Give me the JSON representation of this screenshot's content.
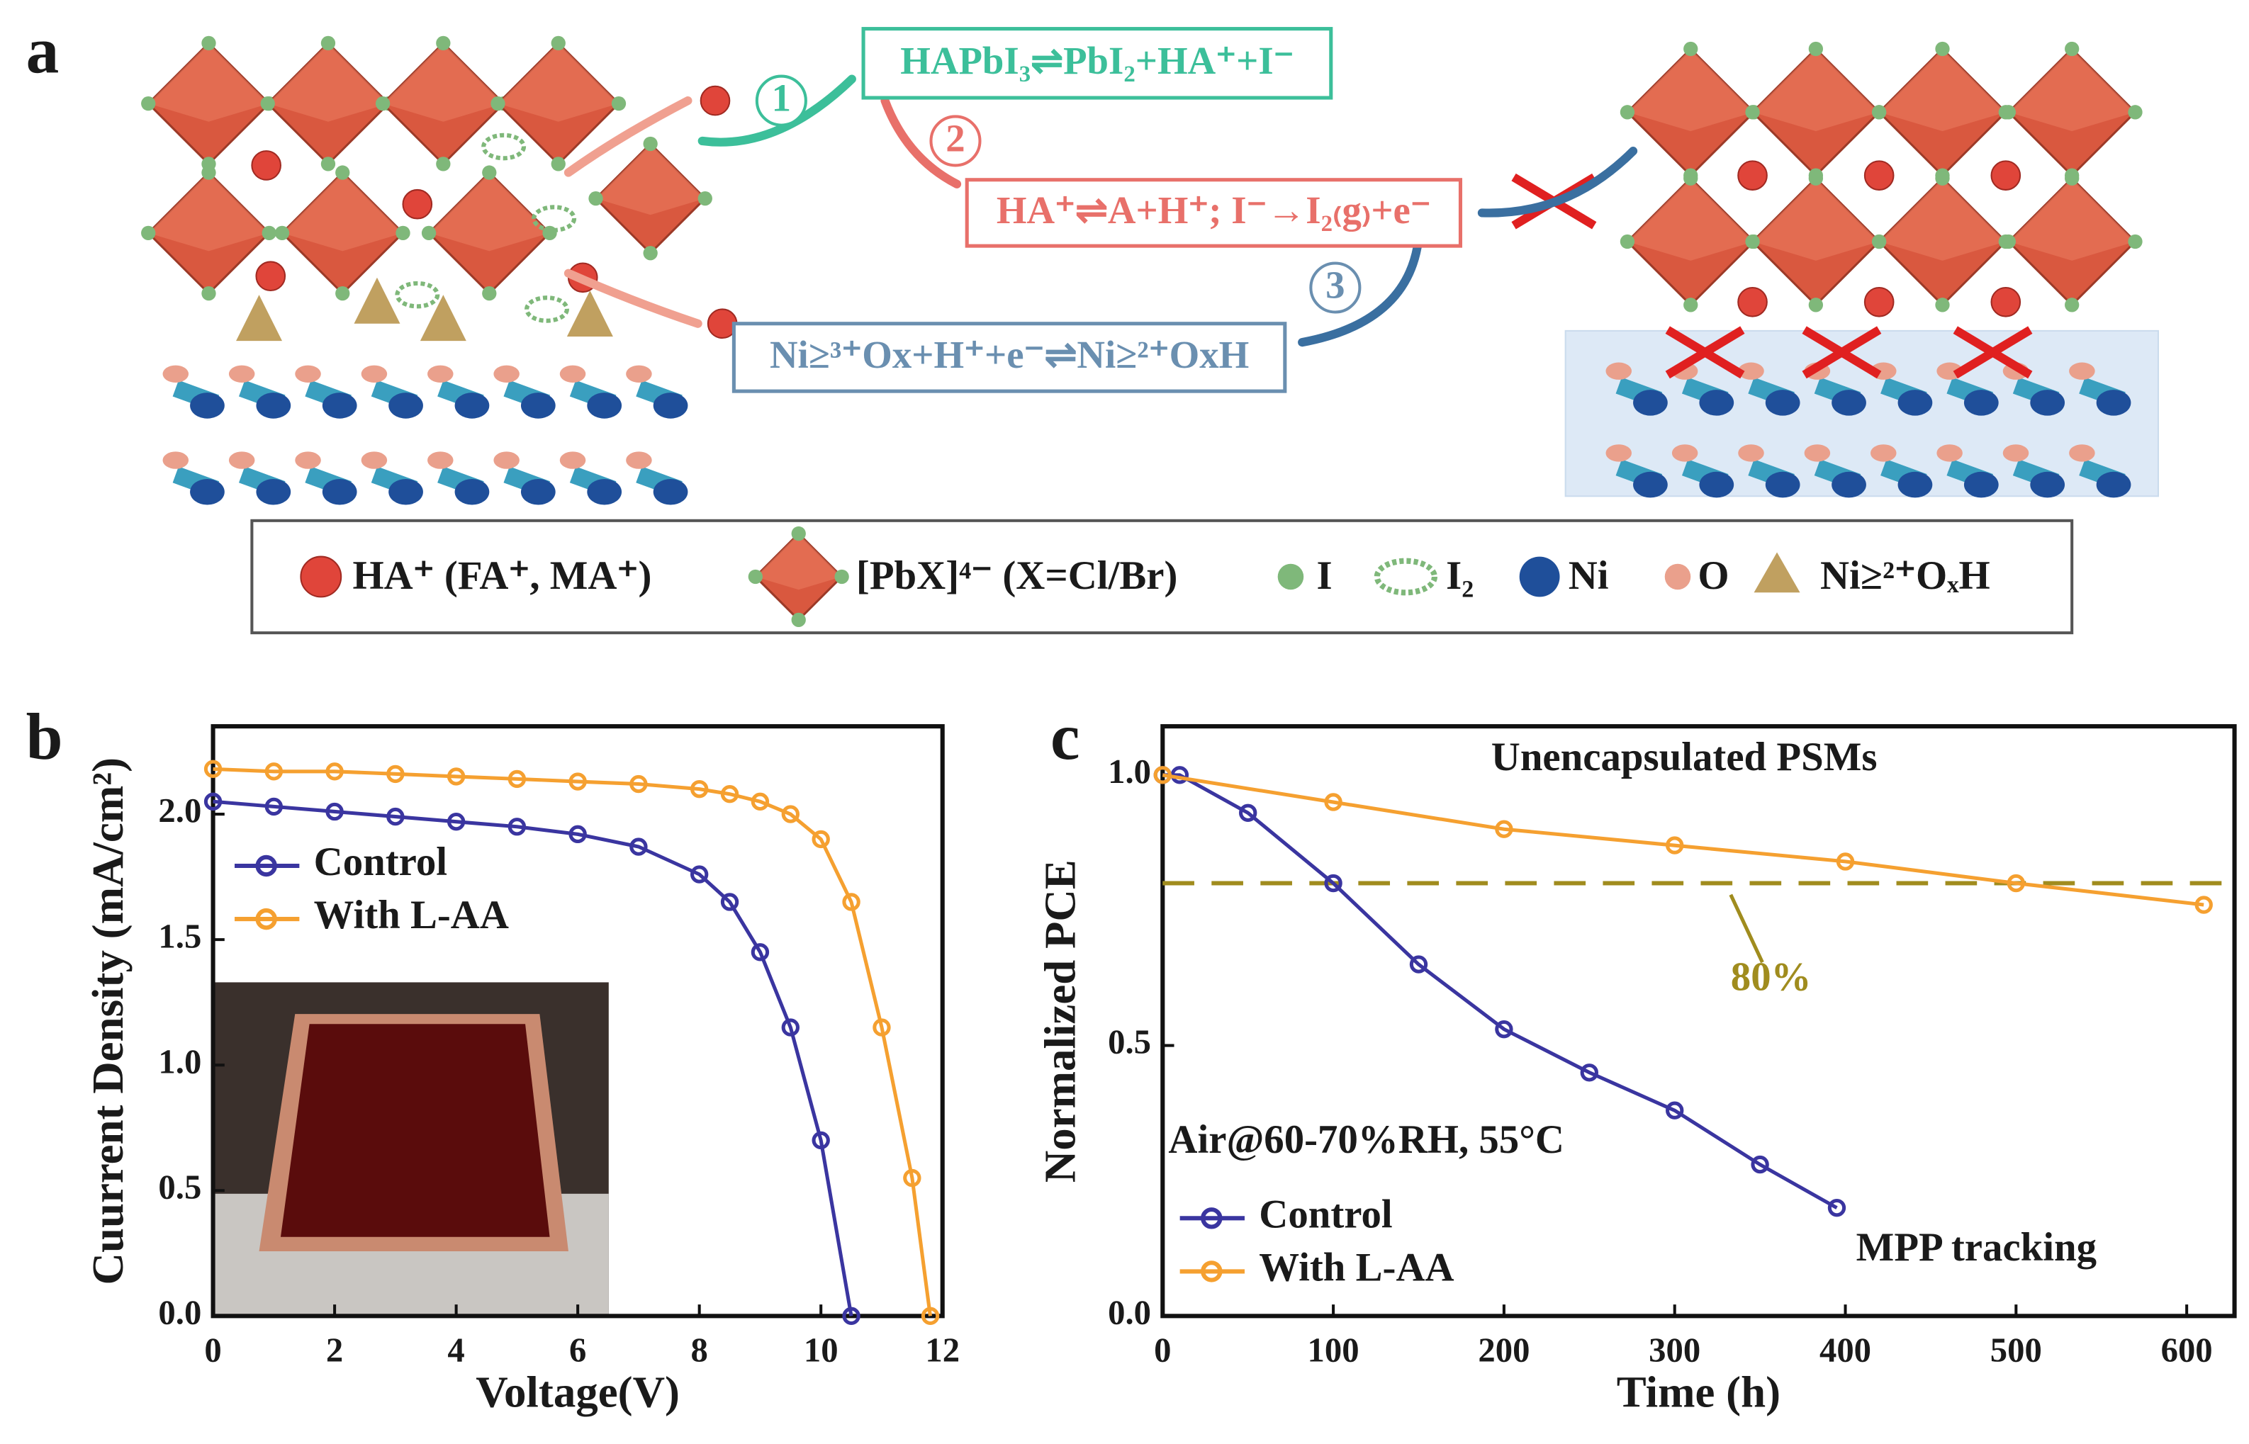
{
  "diagram": {
    "panel_label": "a",
    "equations": [
      {
        "step": "1",
        "text": "HAPbI₃⇌PbI₂+HA⁺+I⁻",
        "color": "#3cbf9a"
      },
      {
        "step": "2",
        "text": "HA⁺⇌A+H⁺; I⁻→I₂₍g₎+e⁻",
        "color": "#e8706a"
      },
      {
        "step": "3",
        "text": "Ni≥³⁺Ox+H⁺+e⁻⇌Ni≥²⁺OxH",
        "color": "#6a8fb0"
      }
    ],
    "legend": [
      "HA⁺ (FA⁺, MA⁺)",
      "[PbX]⁴⁻ (X=Cl/Br)",
      "I",
      "I₂",
      "Ni",
      "O",
      "Ni≥²⁺OₓH"
    ]
  },
  "chart_data": [
    {
      "type": "line",
      "panel_label": "b",
      "xlabel": "Voltage(V)",
      "ylabel": "Cuurrent Density (mA/cm²)",
      "xlim": [
        0,
        12
      ],
      "xticks": [
        0,
        2,
        4,
        6,
        8,
        10,
        12
      ],
      "ylim": [
        0,
        2.35
      ],
      "yticks": [
        {
          "value": 0,
          "label": "0.0"
        },
        0.5,
        {
          "value": 1,
          "label": "1.0"
        },
        1.5,
        {
          "value": 2,
          "label": "2.0"
        }
      ],
      "legend": "center left",
      "series": [
        {
          "name": "Control",
          "color": "#3a35a0",
          "x": [
            0,
            1,
            2,
            3,
            4,
            5,
            6,
            7,
            8,
            8.5,
            9,
            9.5,
            10,
            10.5
          ],
          "values": [
            2.05,
            2.03,
            2.01,
            1.99,
            1.97,
            1.95,
            1.92,
            1.87,
            1.76,
            1.65,
            1.45,
            1.15,
            0.7,
            0
          ]
        },
        {
          "name": "With L-AA",
          "color": "#f5a030",
          "x": [
            0,
            1,
            2,
            3,
            4,
            5,
            6,
            7,
            8,
            8.5,
            9,
            9.5,
            10,
            10.5,
            11,
            11.5,
            11.8
          ],
          "values": [
            2.18,
            2.17,
            2.17,
            2.16,
            2.15,
            2.14,
            2.13,
            2.12,
            2.1,
            2.08,
            2.05,
            2.0,
            1.9,
            1.65,
            1.15,
            0.55,
            0
          ]
        }
      ]
    },
    {
      "type": "line",
      "panel_label": "c",
      "title": "Unencapsulated PSMs",
      "xlabel": "Time (h)",
      "ylabel": "Normalized PCE",
      "xlim": [
        0,
        628
      ],
      "xticks": [
        0,
        100,
        200,
        300,
        400,
        500,
        600
      ],
      "ylim": [
        0,
        1.09
      ],
      "yticks": [
        {
          "value": 0,
          "label": "0.0"
        },
        0.5,
        {
          "value": 1,
          "label": "1.0"
        }
      ],
      "legend": "lower left",
      "reference_line": {
        "value": 0.8,
        "label": "80%",
        "color": "#a08c1e"
      },
      "annotations": [
        "Air@60-70%RH, 55°C",
        "MPP tracking"
      ],
      "series": [
        {
          "name": "Control",
          "color": "#3a35a0",
          "x": [
            0,
            10,
            50,
            100,
            150,
            200,
            250,
            300,
            350,
            395
          ],
          "values": [
            1.0,
            1.0,
            0.93,
            0.8,
            0.65,
            0.53,
            0.45,
            0.38,
            0.28,
            0.2
          ]
        },
        {
          "name": "With L-AA",
          "color": "#f5a030",
          "x": [
            0,
            100,
            200,
            300,
            400,
            500,
            610
          ],
          "values": [
            1.0,
            0.95,
            0.9,
            0.87,
            0.84,
            0.8,
            0.76
          ]
        }
      ]
    }
  ]
}
